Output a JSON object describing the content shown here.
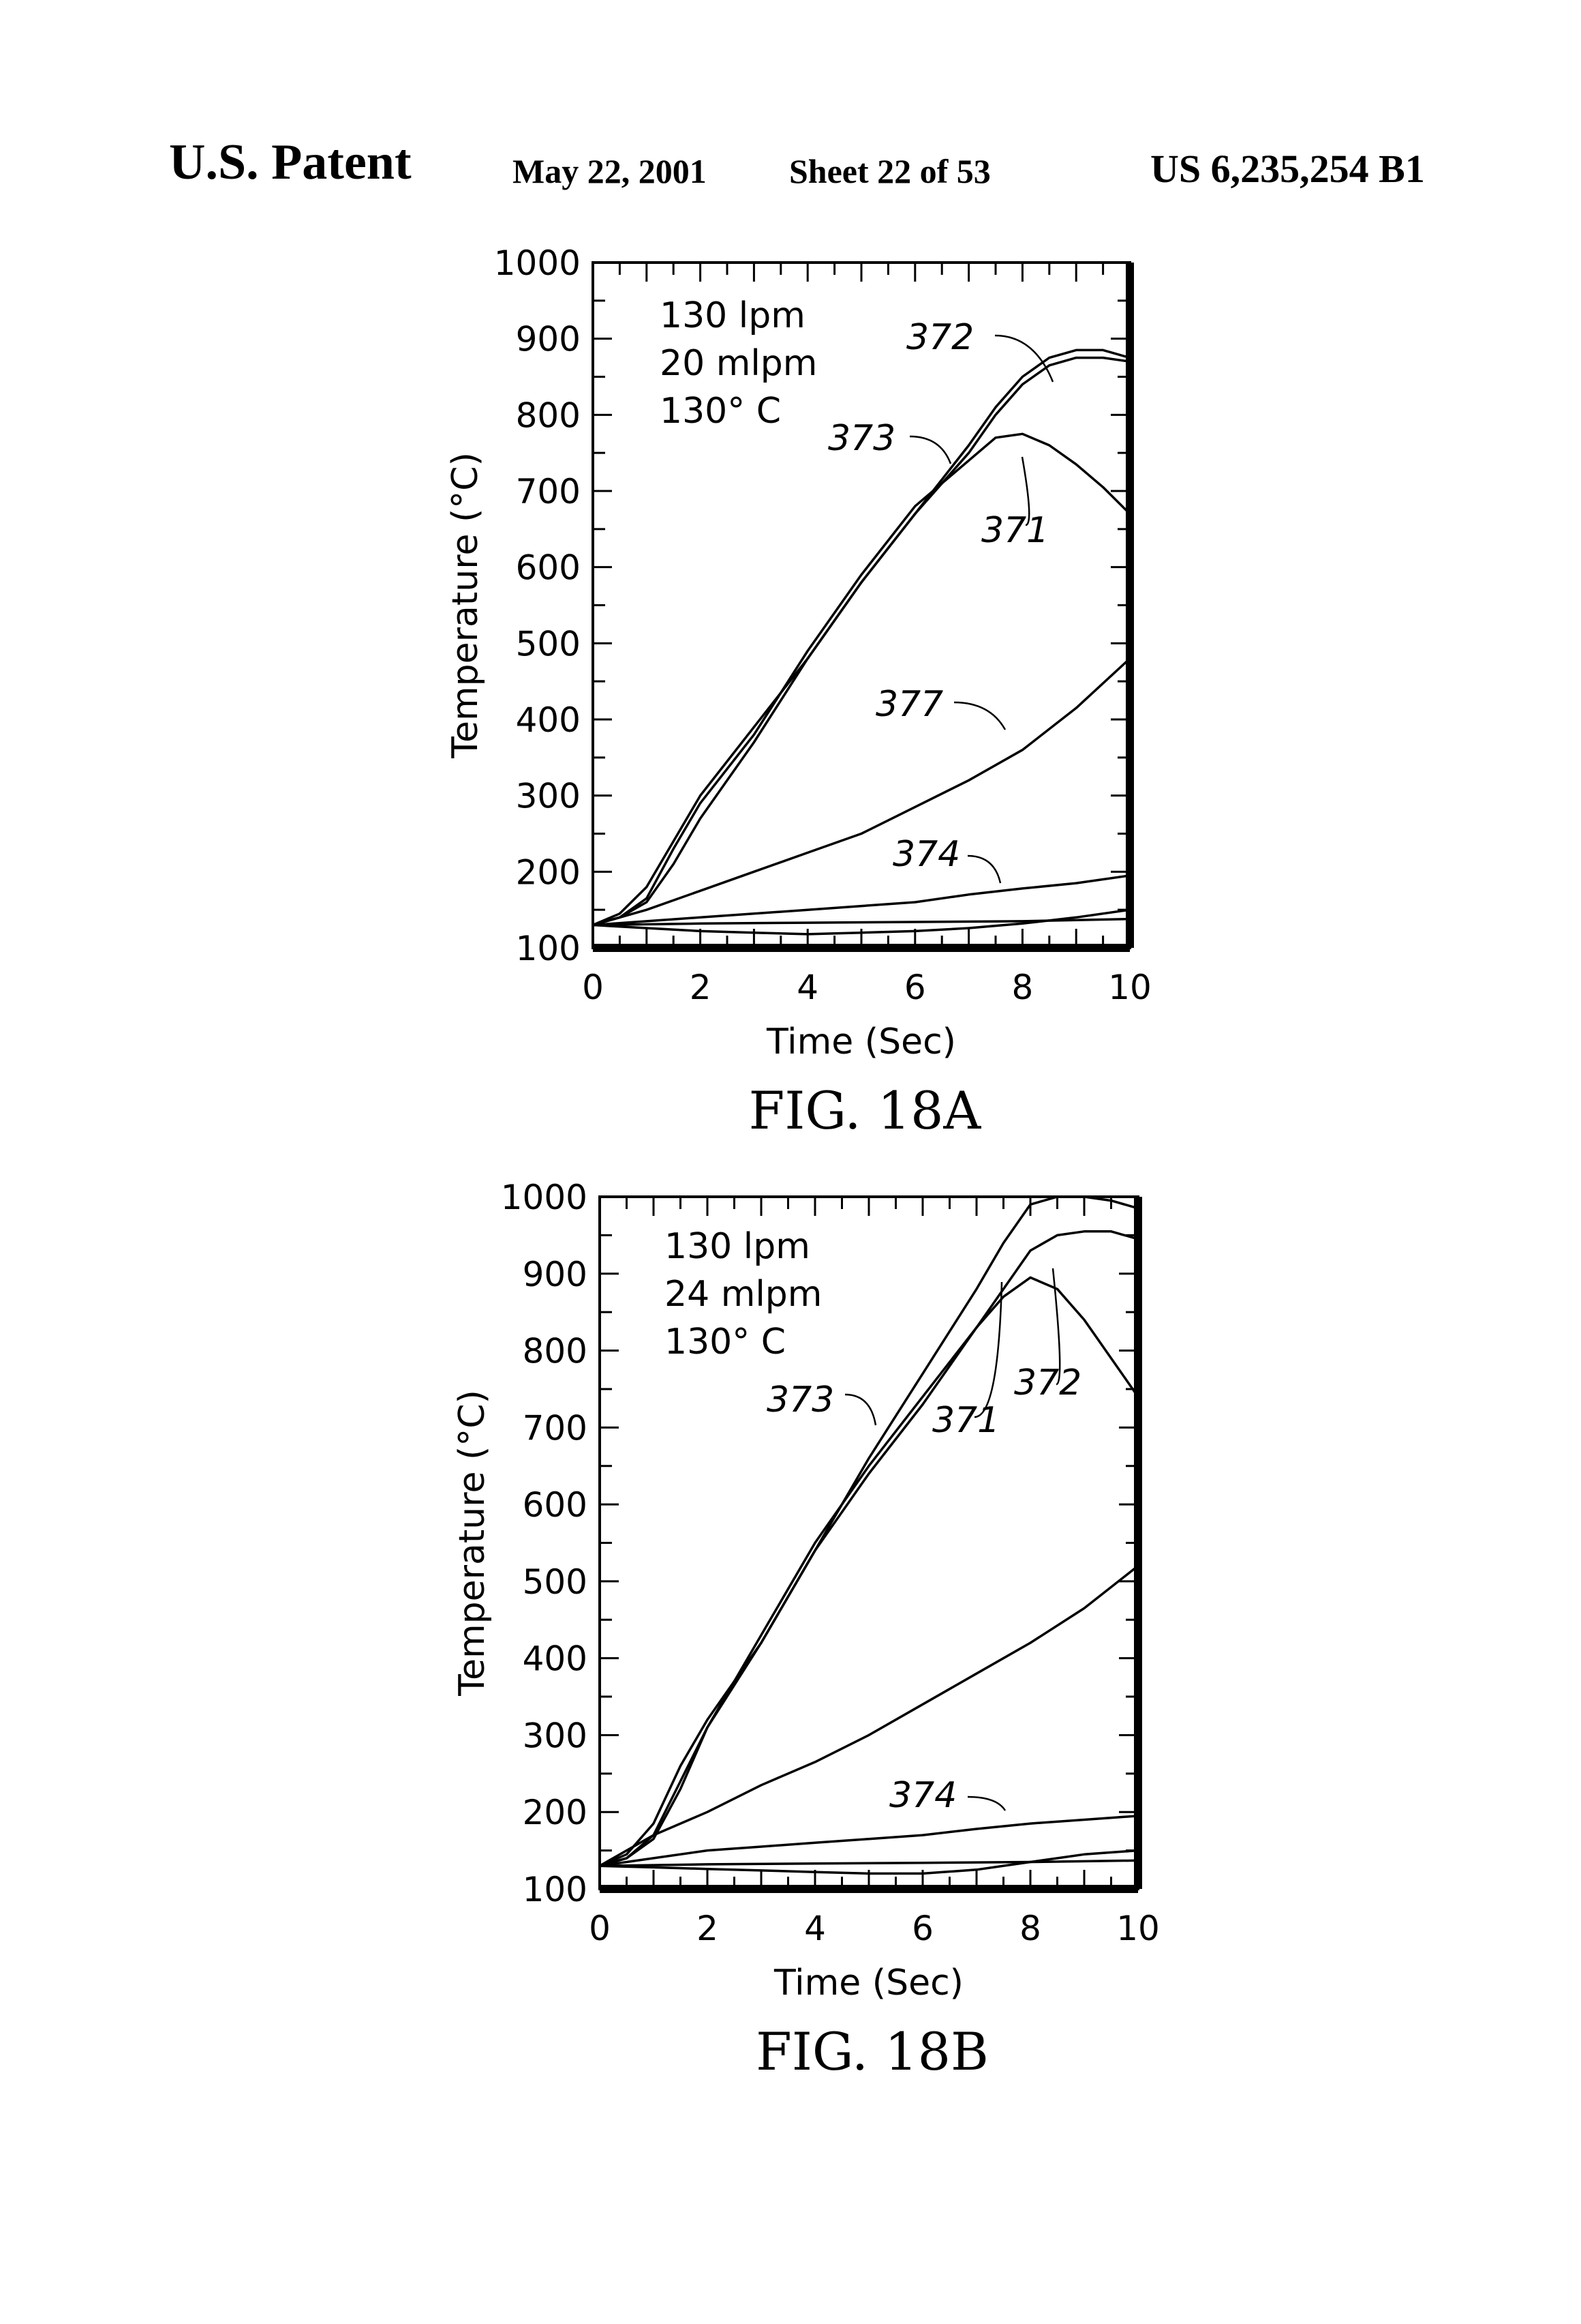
{
  "header": {
    "left": "U.S. Patent",
    "date": "May 22, 2001",
    "sheet": "Sheet 22 of 53",
    "number": "US 6,235,254 B1"
  },
  "chart_data": [
    {
      "type": "line",
      "figure_label": "FIG. 18A",
      "xlabel": "Time (Sec)",
      "ylabel": "Temperature (°C)",
      "xlim": [
        0,
        10
      ],
      "ylim": [
        100,
        1000
      ],
      "xticks": [
        "0",
        "2",
        "4",
        "6",
        "8",
        "10"
      ],
      "yticks": [
        "100",
        "200",
        "300",
        "400",
        "500",
        "600",
        "700",
        "800",
        "900",
        "1000"
      ],
      "annotations": [
        "130 lpm",
        "20 mlpm",
        "130° C"
      ],
      "grid": false,
      "series": [
        {
          "name": "372",
          "x": [
            0,
            0.5,
            1,
            1.5,
            2,
            3,
            4,
            5,
            6,
            7,
            7.5,
            8,
            8.5,
            9,
            9.5,
            10
          ],
          "y": [
            130,
            145,
            180,
            240,
            300,
            390,
            480,
            580,
            670,
            760,
            810,
            850,
            875,
            885,
            885,
            875
          ]
        },
        {
          "name": "373",
          "x": [
            0,
            0.5,
            1,
            1.5,
            2,
            3,
            4,
            5,
            6,
            7,
            7.5,
            8,
            8.5,
            9,
            9.5,
            10
          ],
          "y": [
            130,
            140,
            160,
            210,
            270,
            370,
            480,
            580,
            670,
            750,
            800,
            840,
            865,
            875,
            875,
            870
          ]
        },
        {
          "name": "371",
          "x": [
            0,
            0.5,
            1,
            1.5,
            2,
            3,
            4,
            5,
            6,
            7,
            7.5,
            8,
            8.5,
            9,
            9.5,
            10
          ],
          "y": [
            130,
            140,
            165,
            230,
            290,
            380,
            490,
            590,
            680,
            740,
            770,
            775,
            760,
            735,
            705,
            670
          ]
        },
        {
          "name": "377",
          "x": [
            0,
            1,
            2,
            3,
            4,
            5,
            6,
            7,
            8,
            9,
            10
          ],
          "y": [
            130,
            150,
            175,
            200,
            225,
            250,
            285,
            320,
            360,
            415,
            480
          ]
        },
        {
          "name": "374",
          "x": [
            0,
            1,
            2,
            3,
            4,
            5,
            6,
            7,
            8,
            9,
            10
          ],
          "y": [
            130,
            135,
            140,
            145,
            150,
            155,
            160,
            170,
            178,
            185,
            195
          ]
        },
        {
          "name": "",
          "x": [
            0,
            2,
            4,
            6,
            8,
            10
          ],
          "y": [
            130,
            132,
            133,
            134,
            135,
            138
          ]
        },
        {
          "name": "",
          "x": [
            0,
            1,
            2,
            3,
            4,
            5,
            6,
            7,
            8,
            9,
            10
          ],
          "y": [
            130,
            126,
            122,
            120,
            118,
            120,
            122,
            126,
            132,
            140,
            150
          ]
        }
      ]
    },
    {
      "type": "line",
      "figure_label": "FIG. 18B",
      "xlabel": "Time (Sec)",
      "ylabel": "Temperature (°C)",
      "xlim": [
        0,
        10
      ],
      "ylim": [
        100,
        1000
      ],
      "xticks": [
        "0",
        "2",
        "4",
        "6",
        "8",
        "10"
      ],
      "yticks": [
        "100",
        "200",
        "300",
        "400",
        "500",
        "600",
        "700",
        "800",
        "900",
        "1000"
      ],
      "annotations": [
        "130 lpm",
        "24 mlpm",
        "130° C"
      ],
      "grid": false,
      "series": [
        {
          "name": "373",
          "x": [
            0,
            0.5,
            1,
            1.5,
            2,
            3,
            4,
            5,
            6,
            7,
            7.5,
            8,
            8.5,
            9,
            9.5,
            10
          ],
          "y": [
            130,
            145,
            185,
            260,
            320,
            420,
            540,
            660,
            770,
            880,
            940,
            990,
            1000,
            1000,
            995,
            985
          ]
        },
        {
          "name": "372",
          "x": [
            0,
            0.5,
            1,
            1.5,
            2,
            3,
            4,
            5,
            6,
            7,
            7.5,
            8,
            8.5,
            9,
            9.5,
            10
          ],
          "y": [
            130,
            140,
            165,
            230,
            310,
            420,
            540,
            640,
            730,
            830,
            880,
            930,
            950,
            955,
            955,
            945
          ]
        },
        {
          "name": "371",
          "x": [
            0,
            0.5,
            1,
            1.5,
            2,
            3,
            4,
            5,
            6,
            7,
            7.5,
            8,
            8.5,
            9,
            9.5,
            10
          ],
          "y": [
            130,
            140,
            170,
            240,
            310,
            430,
            550,
            650,
            740,
            830,
            870,
            895,
            880,
            840,
            790,
            740
          ]
        },
        {
          "name": "",
          "x": [
            0,
            1,
            2,
            3,
            4,
            5,
            6,
            7,
            8,
            9,
            10
          ],
          "y": [
            130,
            170,
            200,
            235,
            265,
            300,
            340,
            380,
            420,
            465,
            520
          ]
        },
        {
          "name": "374",
          "x": [
            0,
            1,
            2,
            3,
            4,
            5,
            6,
            7,
            8,
            9,
            10
          ],
          "y": [
            130,
            140,
            150,
            155,
            160,
            165,
            170,
            178,
            185,
            190,
            195
          ]
        },
        {
          "name": "",
          "x": [
            0,
            2,
            4,
            6,
            8,
            10
          ],
          "y": [
            130,
            132,
            133,
            134,
            135,
            137
          ]
        },
        {
          "name": "",
          "x": [
            0,
            1,
            2,
            3,
            4,
            5,
            6,
            7,
            8,
            9,
            10
          ],
          "y": [
            130,
            128,
            126,
            124,
            122,
            120,
            120,
            125,
            135,
            145,
            150
          ]
        }
      ]
    }
  ]
}
